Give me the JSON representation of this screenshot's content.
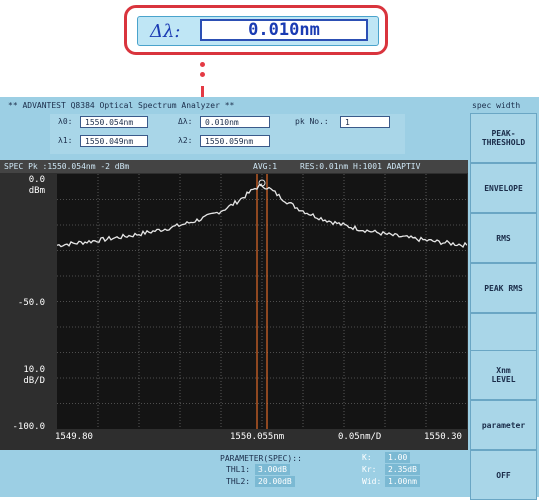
{
  "callout": {
    "symbol": "Δλ:",
    "value": "0.010nm"
  },
  "header": {
    "title": "** ADVANTEST Q8384 Optical Spectrum Analyzer **"
  },
  "params": {
    "l0_label": "λ0:",
    "l0_value": "1550.054nm",
    "dl_label": "Δλ:",
    "dl_value": "0.010nm",
    "pk_label": "pk No.:",
    "pk_value": "1",
    "l1_label": "λ1:",
    "l1_value": "1550.049nm",
    "l2_label": "λ2:",
    "l2_value": "1550.059nm"
  },
  "status": {
    "left": "SPEC Pk :1550.054nm  -2 dBm",
    "avg": "AVG:1",
    "res": "RES:0.01nm H:1001 ADAPTIV"
  },
  "yaxis": {
    "top": "0.0",
    "top_unit": "dBm",
    "mid": "-50.0",
    "scale": "10.0",
    "scale_unit": "dB/D",
    "bottom": "-100.0"
  },
  "xaxis": {
    "start": "1549.80",
    "center": "1550.055nm",
    "span": "0.05nm/D",
    "end": "1550.30"
  },
  "softkeys": {
    "header": "spec width",
    "items": [
      "PEAK-\nTHRESHOLD",
      "ENVELOPE",
      "RMS",
      "PEAK RMS",
      "",
      "Xnm\nLEVEL",
      "parameter",
      "OFF"
    ]
  },
  "bottom": {
    "title": "PARAMETER(SPEC)::",
    "thl1_label": "THL1:",
    "thl1_value": "3.00dB",
    "thl2_label": "THL2:",
    "thl2_value": "20.00dB",
    "k_label": "K:",
    "k_value": "1.00",
    "kr_label": "Kr:",
    "kr_value": "2.35dB",
    "wid_label": "Wid:",
    "wid_value": "1.00nm"
  },
  "colors": {
    "callout_border": "#d9343d",
    "trace": "#e6e6e6",
    "marker": "#e06a2a",
    "screen_bg": "#9ccfe4"
  }
}
